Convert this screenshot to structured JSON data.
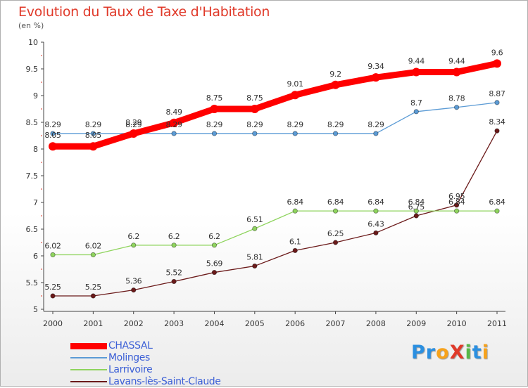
{
  "title": "Evolution du Taux de Taxe d'Habitation",
  "subtitle": "(en %)",
  "logo": {
    "text": "ProXiti",
    "colors": [
      "#2b8fe0",
      "#2b8fe0",
      "#f7a21b",
      "#e03a2a",
      "#56b847",
      "#2b8fe0",
      "#f7a21b"
    ]
  },
  "chart_data": {
    "type": "line",
    "title": "Evolution du Taux de Taxe d'Habitation",
    "ylabel": "(en %)",
    "xlabel": "",
    "x": [
      "2000",
      "2001",
      "2002",
      "2003",
      "2004",
      "2005",
      "2006",
      "2007",
      "2008",
      "2009",
      "2010",
      "2011"
    ],
    "ylim": [
      5,
      10
    ],
    "yticks": [
      "5",
      "5.5",
      "6",
      "6.5",
      "7",
      "7.5",
      "8",
      "8.5",
      "9",
      "9.5",
      "10"
    ],
    "grid": false,
    "legend": "bottom-left",
    "series": [
      {
        "name": "CHASSAL",
        "color": "#ff0000",
        "values": [
          8.05,
          8.05,
          8.29,
          8.49,
          8.75,
          8.75,
          9.01,
          9.2,
          9.34,
          9.44,
          9.44,
          9.6
        ],
        "labels": [
          "8.05",
          "8.05",
          "8.29",
          "8.49",
          "8.75",
          "8.75",
          "9.01",
          "9.2",
          "9.34",
          "9.44",
          "9.44",
          "9.6"
        ]
      },
      {
        "name": "Molinges",
        "color": "#5b9bd5",
        "values": [
          8.29,
          8.29,
          8.29,
          8.29,
          8.29,
          8.29,
          8.29,
          8.29,
          8.29,
          8.7,
          8.78,
          8.87
        ],
        "labels": [
          "8.29",
          "8.29",
          "8.29",
          "8.29",
          "8.29",
          "8.29",
          "8.29",
          "8.29",
          "8.29",
          "8.7",
          "8.78",
          "8.87"
        ]
      },
      {
        "name": "Larrivoire",
        "color": "#8fd45e",
        "values": [
          6.02,
          6.02,
          6.2,
          6.2,
          6.2,
          6.51,
          6.84,
          6.84,
          6.84,
          6.84,
          6.84,
          6.84
        ],
        "labels": [
          "6.02",
          "6.02",
          "6.2",
          "6.2",
          "6.2",
          "6.51",
          "6.84",
          "6.84",
          "6.84",
          "6.84",
          "6.84",
          "6.84"
        ]
      },
      {
        "name": "Lavans-lès-Saint-Claude",
        "color": "#6b1a1a",
        "values": [
          5.25,
          5.25,
          5.36,
          5.52,
          5.69,
          5.81,
          6.1,
          6.25,
          6.43,
          6.75,
          6.95,
          8.34
        ],
        "labels": [
          "5.25",
          "5.25",
          "5.36",
          "5.52",
          "5.69",
          "5.81",
          "6.1",
          "6.25",
          "6.43",
          "6.75",
          "6.95",
          "8.34"
        ]
      }
    ]
  }
}
